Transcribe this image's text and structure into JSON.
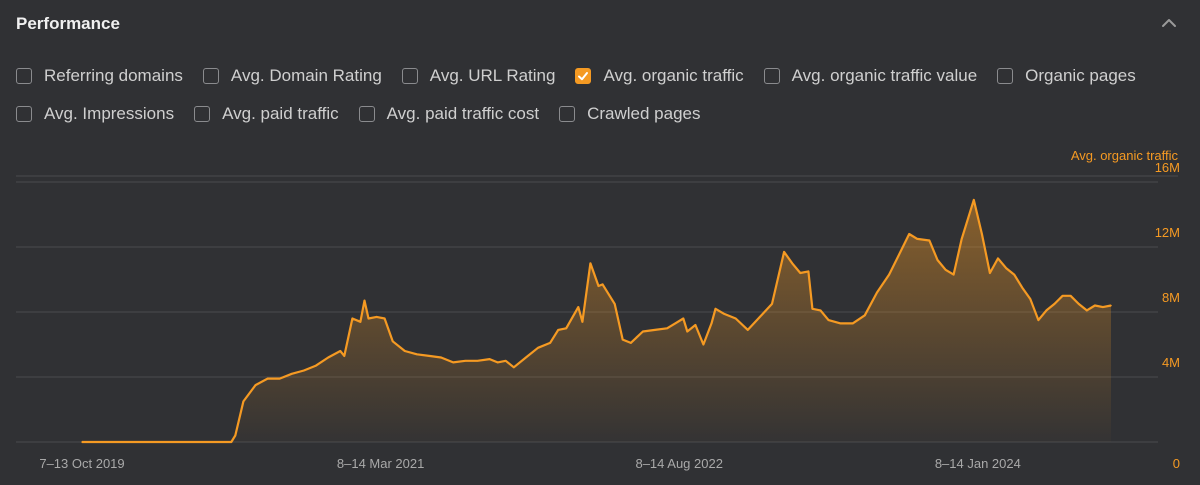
{
  "header": {
    "title": "Performance"
  },
  "filters": [
    {
      "label": "Referring domains",
      "checked": false
    },
    {
      "label": "Avg. Domain Rating",
      "checked": false
    },
    {
      "label": "Avg. URL Rating",
      "checked": false
    },
    {
      "label": "Avg. organic traffic",
      "checked": true
    },
    {
      "label": "Avg. organic traffic value",
      "checked": false
    },
    {
      "label": "Organic pages",
      "checked": false
    },
    {
      "label": "Avg. Impressions",
      "checked": false
    },
    {
      "label": "Avg. paid traffic",
      "checked": false
    },
    {
      "label": "Avg. paid traffic cost",
      "checked": false
    },
    {
      "label": "Crawled pages",
      "checked": false
    }
  ],
  "colors": {
    "accent": "#f59a23",
    "background": "#303134",
    "grid": "#4a4b4e"
  },
  "chart_data": {
    "type": "area",
    "series_label": "Avg. organic traffic",
    "ylim": [
      0,
      16
    ],
    "y_unit": "M",
    "yticks": [
      {
        "value": 0,
        "label": "0"
      },
      {
        "value": 4,
        "label": "4M"
      },
      {
        "value": 8,
        "label": "8M"
      },
      {
        "value": 12,
        "label": "12M"
      },
      {
        "value": 16,
        "label": "16M"
      }
    ],
    "x_start": "2019-10-07",
    "x_end": "2024-08-26",
    "xticks": [
      {
        "date": "2019-10-07",
        "label": "7–13 Oct 2019"
      },
      {
        "date": "2021-03-08",
        "label": "8–14 Mar 2021"
      },
      {
        "date": "2022-08-08",
        "label": "8–14 Aug 2022"
      },
      {
        "date": "2024-01-08",
        "label": "8–14 Jan 2024"
      }
    ],
    "grid": true,
    "legend": "top-right",
    "series": [
      {
        "name": "Avg. organic traffic",
        "points": [
          [
            "2019-10-07",
            0.0
          ],
          [
            "2020-01-20",
            0.0
          ],
          [
            "2020-04-06",
            0.0
          ],
          [
            "2020-06-01",
            0.0
          ],
          [
            "2020-06-22",
            0.0
          ],
          [
            "2020-06-29",
            0.4
          ],
          [
            "2020-07-13",
            2.5
          ],
          [
            "2020-08-03",
            3.5
          ],
          [
            "2020-08-24",
            3.9
          ],
          [
            "2020-09-14",
            3.9
          ],
          [
            "2020-10-05",
            4.2
          ],
          [
            "2020-10-26",
            4.4
          ],
          [
            "2020-11-16",
            4.7
          ],
          [
            "2020-12-07",
            5.2
          ],
          [
            "2020-12-28",
            5.6
          ],
          [
            "2021-01-04",
            5.3
          ],
          [
            "2021-01-18",
            7.6
          ],
          [
            "2021-02-01",
            7.4
          ],
          [
            "2021-02-08",
            8.7
          ],
          [
            "2021-02-15",
            7.6
          ],
          [
            "2021-03-01",
            7.7
          ],
          [
            "2021-03-15",
            7.6
          ],
          [
            "2021-03-29",
            6.2
          ],
          [
            "2021-04-19",
            5.6
          ],
          [
            "2021-05-10",
            5.4
          ],
          [
            "2021-05-31",
            5.3
          ],
          [
            "2021-06-21",
            5.2
          ],
          [
            "2021-07-12",
            4.9
          ],
          [
            "2021-08-02",
            5.0
          ],
          [
            "2021-08-23",
            5.0
          ],
          [
            "2021-09-13",
            5.1
          ],
          [
            "2021-09-27",
            4.9
          ],
          [
            "2021-10-11",
            5.0
          ],
          [
            "2021-10-25",
            4.6
          ],
          [
            "2021-11-15",
            5.2
          ],
          [
            "2021-12-06",
            5.8
          ],
          [
            "2021-12-27",
            6.1
          ],
          [
            "2022-01-10",
            6.9
          ],
          [
            "2022-01-24",
            7.0
          ],
          [
            "2022-02-14",
            8.3
          ],
          [
            "2022-02-21",
            7.4
          ],
          [
            "2022-03-07",
            11.0
          ],
          [
            "2022-03-21",
            9.6
          ],
          [
            "2022-03-28",
            9.7
          ],
          [
            "2022-04-18",
            8.5
          ],
          [
            "2022-05-02",
            6.3
          ],
          [
            "2022-05-16",
            6.1
          ],
          [
            "2022-06-06",
            6.8
          ],
          [
            "2022-06-27",
            6.9
          ],
          [
            "2022-07-18",
            7.0
          ],
          [
            "2022-08-01",
            7.3
          ],
          [
            "2022-08-15",
            7.6
          ],
          [
            "2022-08-22",
            6.8
          ],
          [
            "2022-09-05",
            7.2
          ],
          [
            "2022-09-19",
            6.0
          ],
          [
            "2022-10-03",
            7.3
          ],
          [
            "2022-10-10",
            8.2
          ],
          [
            "2022-10-24",
            7.9
          ],
          [
            "2022-11-14",
            7.6
          ],
          [
            "2022-12-05",
            6.9
          ],
          [
            "2022-12-26",
            7.7
          ],
          [
            "2023-01-16",
            8.5
          ],
          [
            "2023-02-06",
            11.7
          ],
          [
            "2023-02-20",
            11.0
          ],
          [
            "2023-03-06",
            10.4
          ],
          [
            "2023-03-20",
            10.5
          ],
          [
            "2023-03-27",
            8.2
          ],
          [
            "2023-04-10",
            8.1
          ],
          [
            "2023-04-24",
            7.5
          ],
          [
            "2023-05-15",
            7.3
          ],
          [
            "2023-06-05",
            7.3
          ],
          [
            "2023-06-26",
            7.8
          ],
          [
            "2023-07-17",
            9.2
          ],
          [
            "2023-08-07",
            10.3
          ],
          [
            "2023-08-28",
            11.8
          ],
          [
            "2023-09-11",
            12.8
          ],
          [
            "2023-09-25",
            12.5
          ],
          [
            "2023-10-16",
            12.4
          ],
          [
            "2023-10-30",
            11.2
          ],
          [
            "2023-11-13",
            10.6
          ],
          [
            "2023-11-27",
            10.3
          ],
          [
            "2023-12-11",
            12.5
          ],
          [
            "2024-01-01",
            14.9
          ],
          [
            "2024-01-15",
            12.8
          ],
          [
            "2024-01-29",
            10.4
          ],
          [
            "2024-02-12",
            11.3
          ],
          [
            "2024-02-26",
            10.7
          ],
          [
            "2024-03-11",
            10.3
          ],
          [
            "2024-03-25",
            9.5
          ],
          [
            "2024-04-08",
            8.8
          ],
          [
            "2024-04-22",
            7.5
          ],
          [
            "2024-05-06",
            8.1
          ],
          [
            "2024-05-20",
            8.5
          ],
          [
            "2024-06-03",
            9.0
          ],
          [
            "2024-06-17",
            9.0
          ],
          [
            "2024-07-01",
            8.5
          ],
          [
            "2024-07-15",
            8.1
          ],
          [
            "2024-07-29",
            8.4
          ],
          [
            "2024-08-12",
            8.3
          ],
          [
            "2024-08-26",
            8.4
          ]
        ]
      }
    ]
  }
}
